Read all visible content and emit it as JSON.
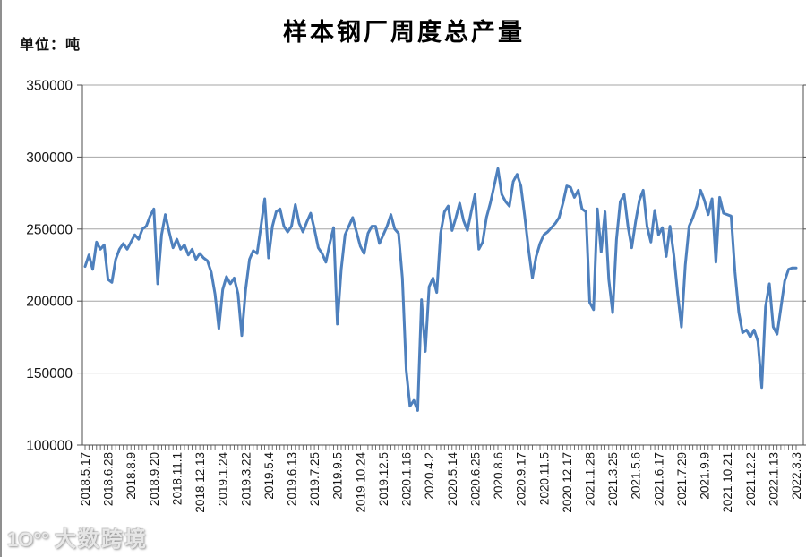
{
  "page": {
    "title": "样本钢厂周度总产量",
    "unit_label": "单位：吨"
  },
  "watermark": {
    "logo_text": "1O°°",
    "text": "大数跨境"
  },
  "chart_data": {
    "type": "line",
    "title": "样本钢厂周度总产量",
    "unit": "吨",
    "ylabel": "单位：吨",
    "xlabel": "",
    "legend": "none",
    "grid": "horizontal",
    "ylim": [
      100000,
      350000
    ],
    "yticks": [
      100000,
      150000,
      200000,
      250000,
      300000,
      350000
    ],
    "label_every_n_points": 6,
    "x_tick_labels": [
      "2018.5.17",
      "2018.6.28",
      "2018.8.9",
      "2018.9.20",
      "2018.11.1",
      "2018.12.13",
      "2019.1.24",
      "2019.3.22",
      "2019.5.4",
      "2019.6.13",
      "2019.7.25",
      "2019.9.5",
      "2019.10.24",
      "2019.12.5",
      "2020.1.16",
      "2020.4.2",
      "2020.5.14",
      "2020.6.25",
      "2020.8.6",
      "2020.9.17",
      "2020.11.5",
      "2020.12.17",
      "2021.1.28",
      "2021.3.25",
      "2021.5.6",
      "2021.6.17",
      "2021.7.29",
      "2021.9.9",
      "2021.10.21",
      "2021.12.2",
      "2022.1.13",
      "2022.3.3"
    ],
    "values": [
      224000,
      232000,
      222000,
      241000,
      236000,
      239000,
      215000,
      213000,
      229000,
      236000,
      240000,
      236000,
      241000,
      246000,
      243000,
      250000,
      252000,
      259000,
      264000,
      212000,
      246000,
      260000,
      248000,
      237000,
      243000,
      236000,
      239000,
      232000,
      236000,
      229000,
      233000,
      230000,
      228000,
      220000,
      205000,
      181000,
      208000,
      217000,
      212000,
      216000,
      205000,
      176000,
      208000,
      229000,
      235000,
      233000,
      252000,
      271000,
      230000,
      252000,
      262000,
      264000,
      252000,
      248000,
      252000,
      267000,
      254000,
      248000,
      255000,
      261000,
      250000,
      237000,
      233000,
      227000,
      240000,
      251000,
      184000,
      222000,
      246000,
      252000,
      258000,
      248000,
      238000,
      233000,
      247000,
      252000,
      252000,
      240000,
      246000,
      252000,
      260000,
      250000,
      247000,
      216000,
      152000,
      127000,
      131000,
      124000,
      201000,
      165000,
      210000,
      216000,
      206000,
      247000,
      262000,
      266000,
      249000,
      258000,
      268000,
      256000,
      249000,
      262000,
      274000,
      236000,
      241000,
      258000,
      268000,
      280000,
      292000,
      274000,
      269000,
      266000,
      283000,
      288000,
      280000,
      259000,
      236000,
      216000,
      231000,
      240000,
      246000,
      248000,
      251000,
      254000,
      258000,
      268000,
      280000,
      279000,
      272000,
      277000,
      264000,
      262000,
      199000,
      194000,
      264000,
      234000,
      262000,
      215000,
      192000,
      243000,
      269000,
      274000,
      252000,
      237000,
      255000,
      270000,
      277000,
      252000,
      241000,
      263000,
      246000,
      251000,
      231000,
      252000,
      232000,
      205000,
      182000,
      225000,
      252000,
      258000,
      266000,
      277000,
      270000,
      260000,
      271000,
      227000,
      272000,
      261000,
      260000,
      259000,
      220000,
      192000,
      178000,
      180000,
      175000,
      180000,
      172000,
      140000,
      196000,
      212000,
      182000,
      177000,
      195000,
      214000,
      222000,
      223000,
      223000
    ],
    "colors": {
      "line": "#4E80BD",
      "gridline": "#A6A6A6",
      "axis": "#4D4D4D",
      "tick_label": "#151515"
    }
  }
}
